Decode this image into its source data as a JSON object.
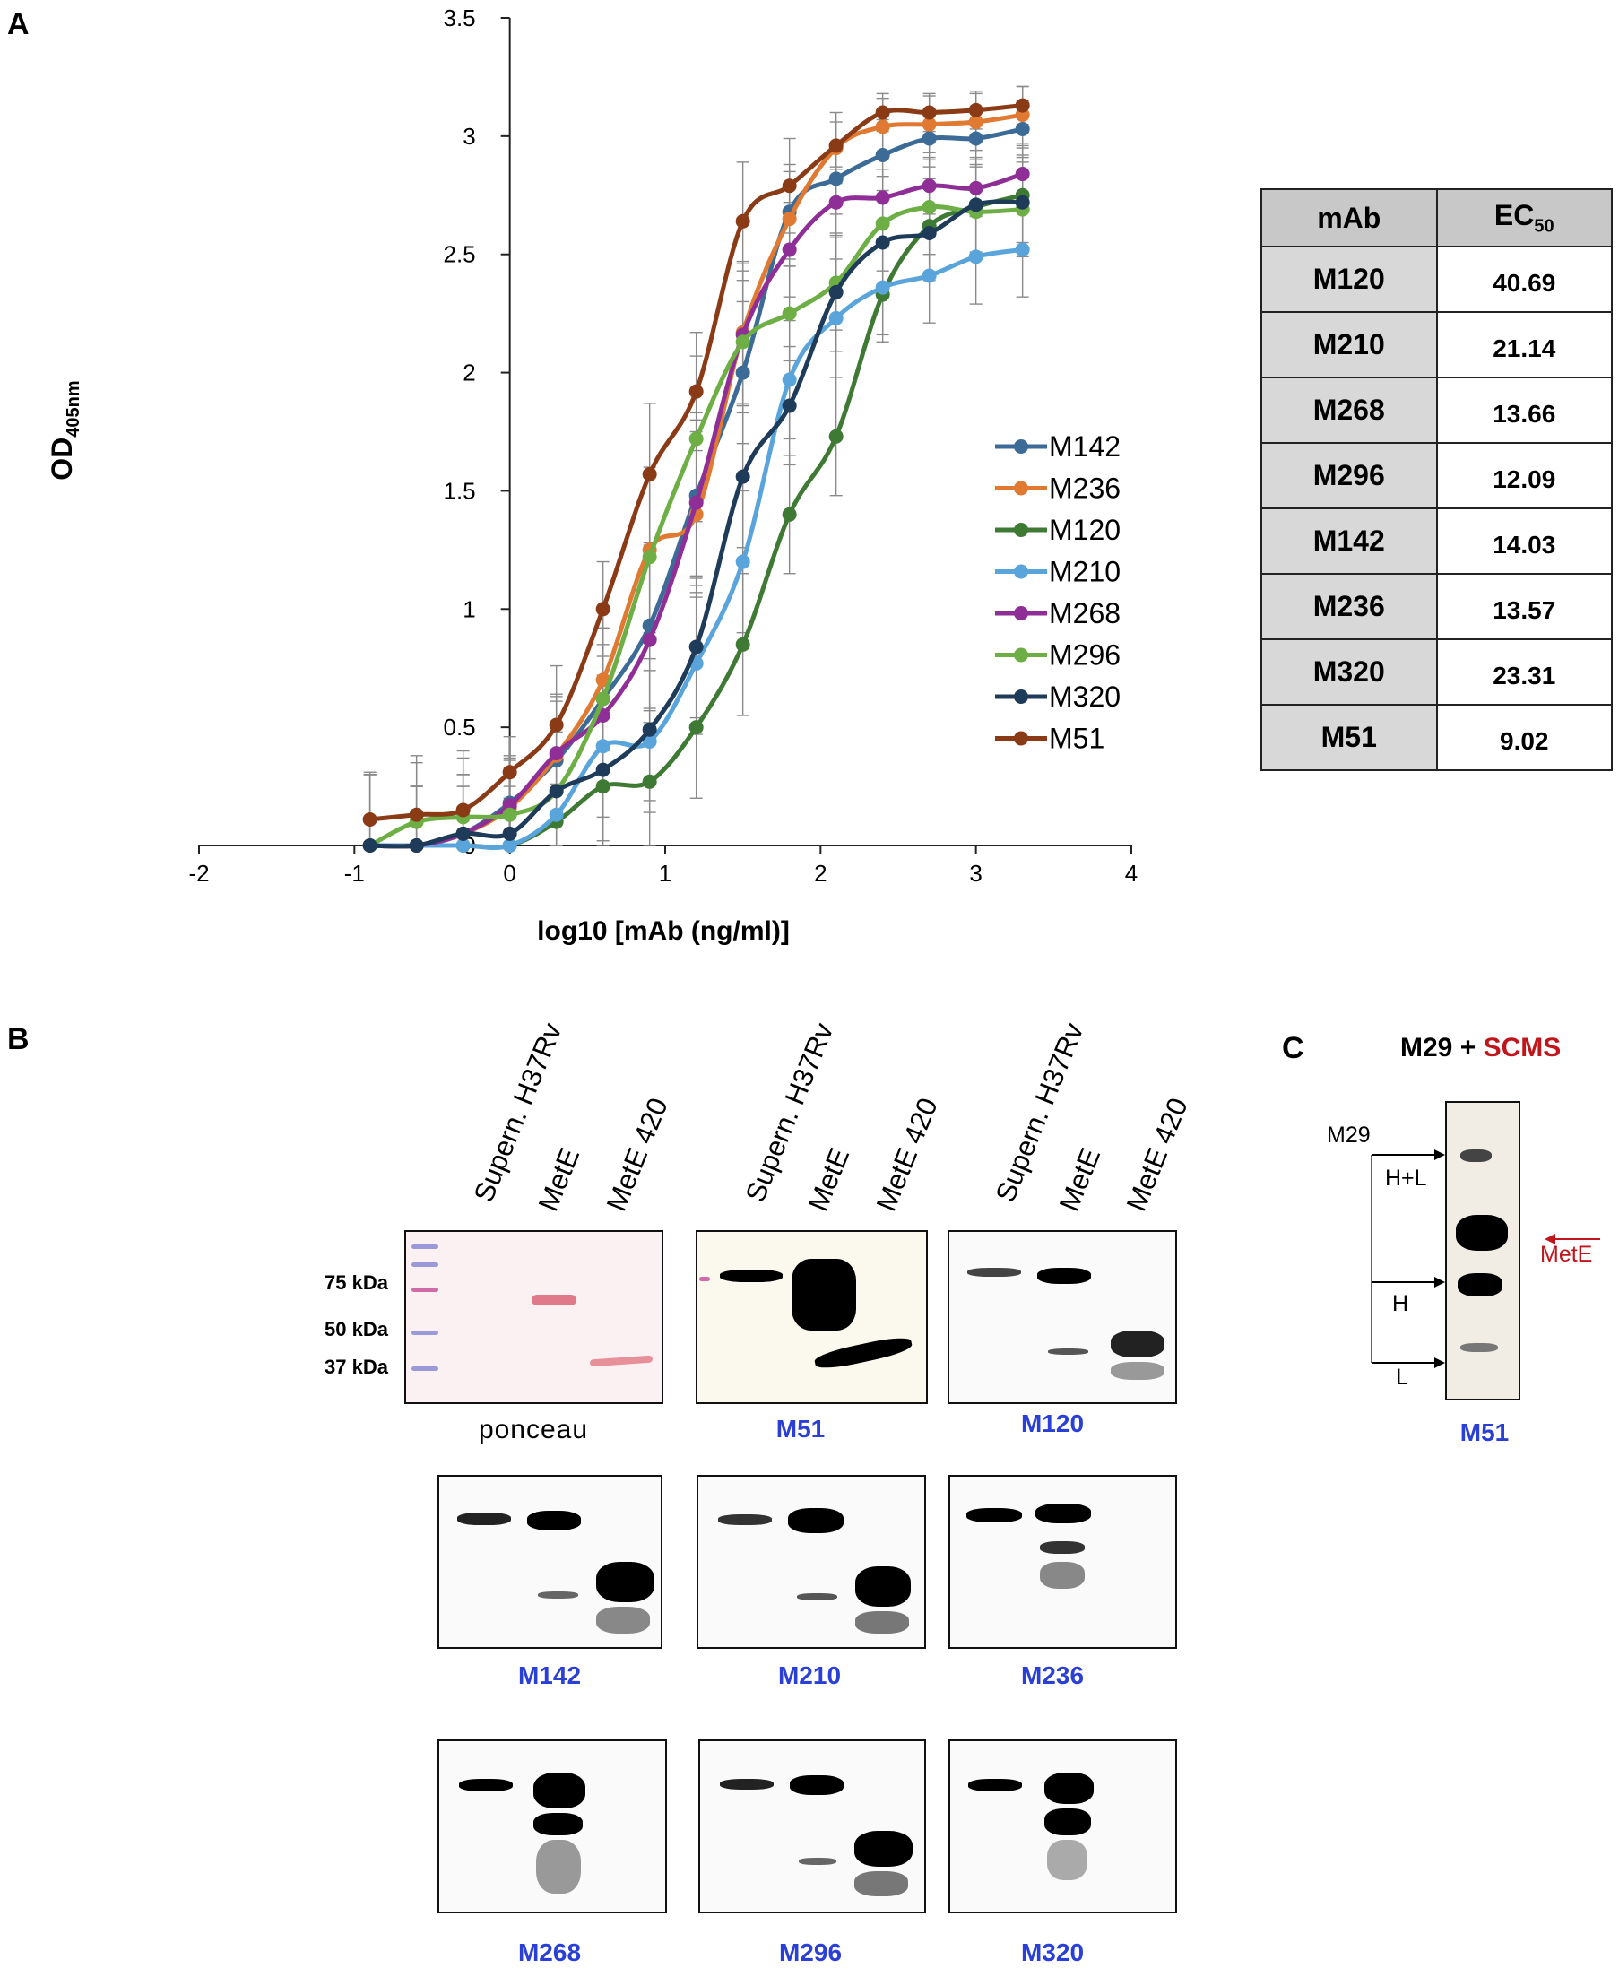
{
  "panel_labels": {
    "a": "A",
    "b": "B",
    "c": "C"
  },
  "chart_data": {
    "type": "line",
    "xlabel": "log10 [mAb (ng/ml)]",
    "ylabel": "OD",
    "ylabel_sub": "405nm",
    "xlim": [
      -2,
      4
    ],
    "ylim": [
      0,
      3.5
    ],
    "xticks": [
      -2,
      -1,
      0,
      1,
      2,
      3,
      4
    ],
    "yticks": [
      0,
      0.5,
      1,
      1.5,
      2,
      2.5,
      3,
      3.5
    ],
    "x": [
      -0.9,
      -0.6,
      -0.3,
      0,
      0.3,
      0.6,
      0.9,
      1.2,
      1.5,
      1.8,
      2.1,
      2.4,
      2.7,
      3.0,
      3.3
    ],
    "series": [
      {
        "name": "M142",
        "color": "#3b6b96",
        "values": [
          0.0,
          0.0,
          0.05,
          0.18,
          0.36,
          0.62,
          0.93,
          1.48,
          2.0,
          2.68,
          2.82,
          2.92,
          2.99,
          2.99,
          3.03
        ],
        "err": [
          0.3,
          0.25,
          0.25,
          0.2,
          0.25,
          0.3,
          0.35,
          0.35,
          0.3,
          0.2,
          0.15,
          0.15,
          0.12,
          0.12,
          0.12
        ]
      },
      {
        "name": "M236",
        "color": "#e07a32",
        "values": [
          0.0,
          0.0,
          0.05,
          0.16,
          0.38,
          0.7,
          1.25,
          1.4,
          2.17,
          2.65,
          2.95,
          3.04,
          3.05,
          3.06,
          3.09
        ],
        "err": [
          0.3,
          0.25,
          0.25,
          0.2,
          0.25,
          0.3,
          0.35,
          0.35,
          0.3,
          0.2,
          0.15,
          0.12,
          0.12,
          0.12,
          0.12
        ]
      },
      {
        "name": "M120",
        "color": "#3e7a34",
        "values": [
          0.0,
          0.0,
          0.0,
          0.0,
          0.1,
          0.25,
          0.27,
          0.5,
          0.85,
          1.4,
          1.73,
          2.33,
          2.62,
          2.7,
          2.75
        ],
        "err": [
          0.3,
          0.25,
          0.25,
          0.2,
          0.25,
          0.3,
          0.3,
          0.3,
          0.3,
          0.25,
          0.25,
          0.2,
          0.2,
          0.2,
          0.2
        ]
      },
      {
        "name": "M210",
        "color": "#5aa4dc",
        "values": [
          0.0,
          0.0,
          0.0,
          0.0,
          0.13,
          0.42,
          0.44,
          0.77,
          1.2,
          1.97,
          2.23,
          2.36,
          2.41,
          2.49,
          2.52
        ],
        "err": [
          0.3,
          0.25,
          0.25,
          0.2,
          0.25,
          0.3,
          0.3,
          0.3,
          0.3,
          0.25,
          0.25,
          0.2,
          0.2,
          0.2,
          0.2
        ]
      },
      {
        "name": "M268",
        "color": "#8e2e96",
        "values": [
          0.0,
          0.0,
          0.05,
          0.17,
          0.39,
          0.55,
          0.87,
          1.45,
          2.16,
          2.52,
          2.72,
          2.74,
          2.79,
          2.78,
          2.84
        ],
        "err": [
          0.3,
          0.25,
          0.25,
          0.2,
          0.25,
          0.3,
          0.35,
          0.35,
          0.3,
          0.2,
          0.15,
          0.12,
          0.12,
          0.12,
          0.12
        ]
      },
      {
        "name": "M296",
        "color": "#6dae45",
        "values": [
          0.0,
          0.1,
          0.12,
          0.13,
          0.23,
          0.62,
          1.22,
          1.72,
          2.13,
          2.25,
          2.38,
          2.63,
          2.7,
          2.68,
          2.69
        ],
        "err": [
          0.3,
          0.25,
          0.25,
          0.2,
          0.25,
          0.3,
          0.35,
          0.35,
          0.3,
          0.2,
          0.2,
          0.2,
          0.2,
          0.2,
          0.2
        ]
      },
      {
        "name": "M320",
        "color": "#1e3c5a",
        "values": [
          0.0,
          0.0,
          0.05,
          0.05,
          0.23,
          0.32,
          0.49,
          0.84,
          1.56,
          1.86,
          2.34,
          2.55,
          2.59,
          2.71,
          2.72
        ],
        "err": [
          0.3,
          0.25,
          0.25,
          0.2,
          0.25,
          0.3,
          0.3,
          0.3,
          0.3,
          0.25,
          0.25,
          0.2,
          0.2,
          0.2,
          0.2
        ]
      },
      {
        "name": "M51",
        "color": "#8b3a16",
        "values": [
          0.11,
          0.13,
          0.15,
          0.31,
          0.51,
          1.0,
          1.57,
          1.92,
          2.64,
          2.79,
          2.96,
          3.1,
          3.1,
          3.11,
          3.13
        ],
        "err": [
          0.2,
          0.25,
          0.25,
          0.15,
          0.25,
          0.2,
          0.3,
          0.25,
          0.25,
          0.2,
          0.1,
          0.08,
          0.08,
          0.08,
          0.08
        ]
      }
    ]
  },
  "ec50_table": {
    "header": {
      "mab": "mAb",
      "ec": "EC",
      "ec_sub": "50"
    },
    "rows": [
      {
        "mab": "M120",
        "value": "40.69"
      },
      {
        "mab": "M210",
        "value": "21.14"
      },
      {
        "mab": "M268",
        "value": "13.66"
      },
      {
        "mab": "M296",
        "value": "12.09"
      },
      {
        "mab": "M142",
        "value": "14.03"
      },
      {
        "mab": "M236",
        "value": "13.57"
      },
      {
        "mab": "M320",
        "value": "23.31"
      },
      {
        "mab": "M51",
        "value": "9.02"
      }
    ]
  },
  "panel_b": {
    "lanes": [
      "Supern. H37Rv",
      "MetE",
      "MetE 420"
    ],
    "kda": [
      "75 kDa",
      "50 kDa",
      "37 kDa"
    ],
    "blots": [
      "ponceau",
      "M51",
      "M120",
      "M142",
      "M210",
      "M236",
      "M268",
      "M296",
      "M320"
    ]
  },
  "panel_c": {
    "title_black": "M29 + ",
    "title_red": "SCMS",
    "m29": "M29",
    "h_l": "H+L",
    "h": "H",
    "l": "L",
    "mete": "MetE",
    "blot_label": "M51"
  }
}
